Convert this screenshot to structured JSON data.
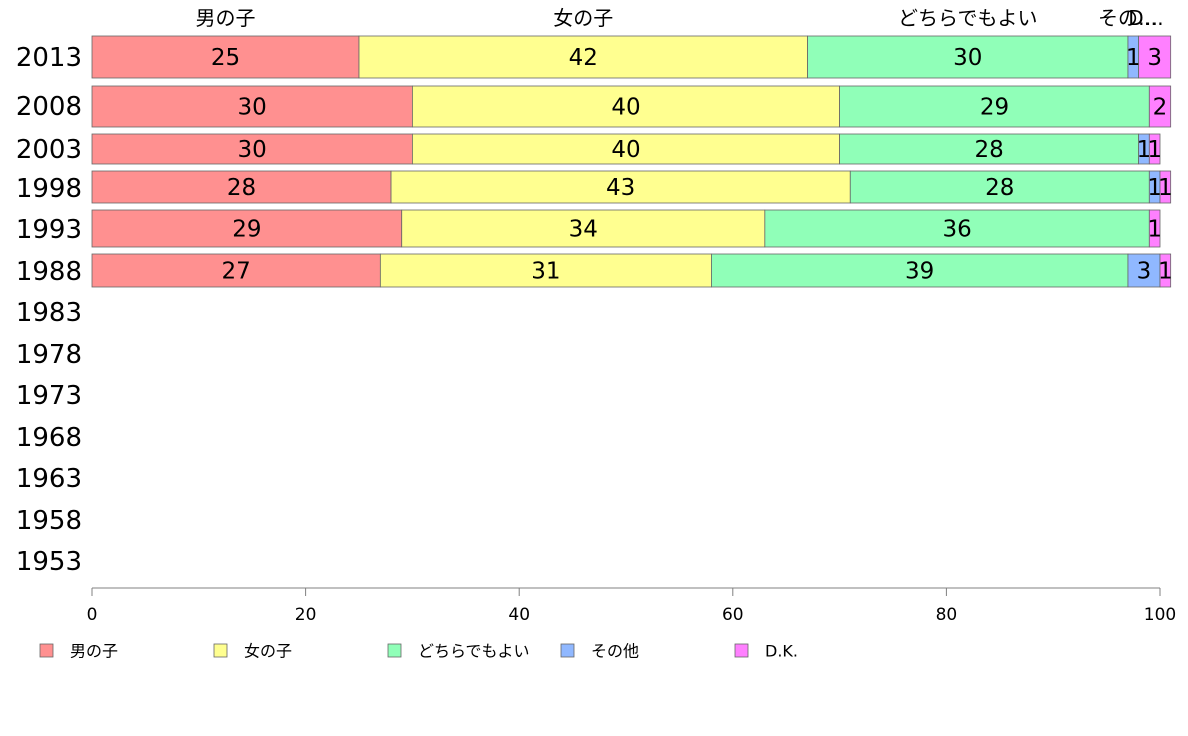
{
  "chart_data": {
    "type": "bar",
    "orientation": "horizontal",
    "stacked": true,
    "categories": [
      "2013",
      "2008",
      "2003",
      "1998",
      "1993",
      "1988",
      "1983",
      "1978",
      "1973",
      "1968",
      "1963",
      "1958",
      "1953"
    ],
    "series": [
      {
        "name": "男の子",
        "color": "#ff9090",
        "values": [
          25,
          30,
          30,
          28,
          29,
          27,
          null,
          null,
          null,
          null,
          null,
          null,
          null
        ]
      },
      {
        "name": "女の子",
        "color": "#ffff90",
        "values": [
          42,
          40,
          40,
          43,
          34,
          31,
          null,
          null,
          null,
          null,
          null,
          null,
          null
        ]
      },
      {
        "name": "どちらでもよい",
        "color": "#90ffb8",
        "values": [
          30,
          29,
          28,
          28,
          36,
          39,
          null,
          null,
          null,
          null,
          null,
          null,
          null
        ]
      },
      {
        "name": "その他",
        "color": "#90b8ff",
        "values": [
          1,
          0,
          1,
          1,
          0,
          3,
          null,
          null,
          null,
          null,
          null,
          null,
          null
        ]
      },
      {
        "name": "D.K.",
        "color": "#ff80ff",
        "values": [
          3,
          2,
          1,
          1,
          1,
          1,
          null,
          null,
          null,
          null,
          null,
          null,
          null
        ]
      }
    ],
    "segment_headers": [
      "男の子",
      "女の子",
      "どちらでもよい",
      "その…",
      "D…"
    ],
    "xlim": [
      0,
      100
    ],
    "xticks": [
      "0",
      "20",
      "40",
      "60",
      "80",
      "100"
    ],
    "grid": false,
    "legend_position": "bottom"
  }
}
